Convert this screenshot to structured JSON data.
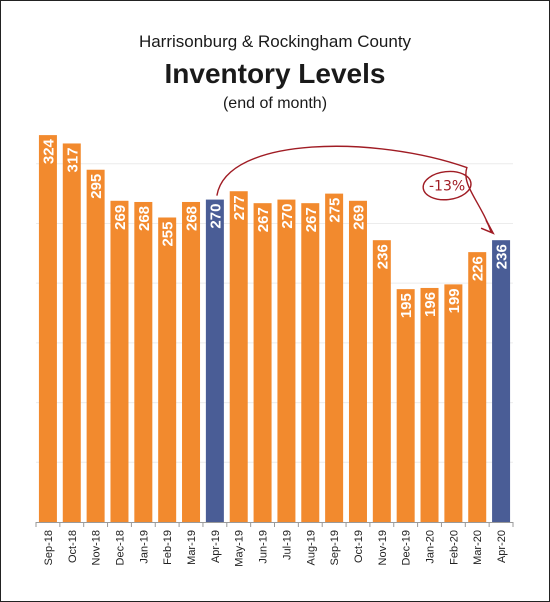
{
  "title": "Harrisonburg & Rockingham County",
  "subtitle": "Inventory Levels",
  "note": "(end of month)",
  "chart_data": {
    "type": "bar",
    "title": "Harrisonburg & Rockingham County",
    "subtitle": "Inventory Levels",
    "note": "(end of month)",
    "categories": [
      "Sep-18",
      "Oct-18",
      "Nov-18",
      "Dec-18",
      "Jan-19",
      "Feb-19",
      "Mar-19",
      "Apr-19",
      "May-19",
      "Jun-19",
      "Jul-19",
      "Aug-19",
      "Sep-19",
      "Oct-19",
      "Nov-19",
      "Dec-19",
      "Jan-20",
      "Feb-20",
      "Mar-20",
      "Apr-20"
    ],
    "values": [
      324,
      317,
      295,
      269,
      268,
      255,
      268,
      270,
      277,
      267,
      270,
      267,
      275,
      269,
      236,
      195,
      196,
      199,
      226,
      236
    ],
    "highlighted": [
      "Apr-19",
      "Apr-20"
    ],
    "colors": {
      "bar": "#f28a2e",
      "highlight": "#4a5d96",
      "annotation": "#a01c24"
    },
    "ylim": [
      0,
      340
    ],
    "grid": true,
    "annotation": {
      "text": "-13%",
      "from": "Apr-19",
      "to": "Apr-20"
    }
  }
}
